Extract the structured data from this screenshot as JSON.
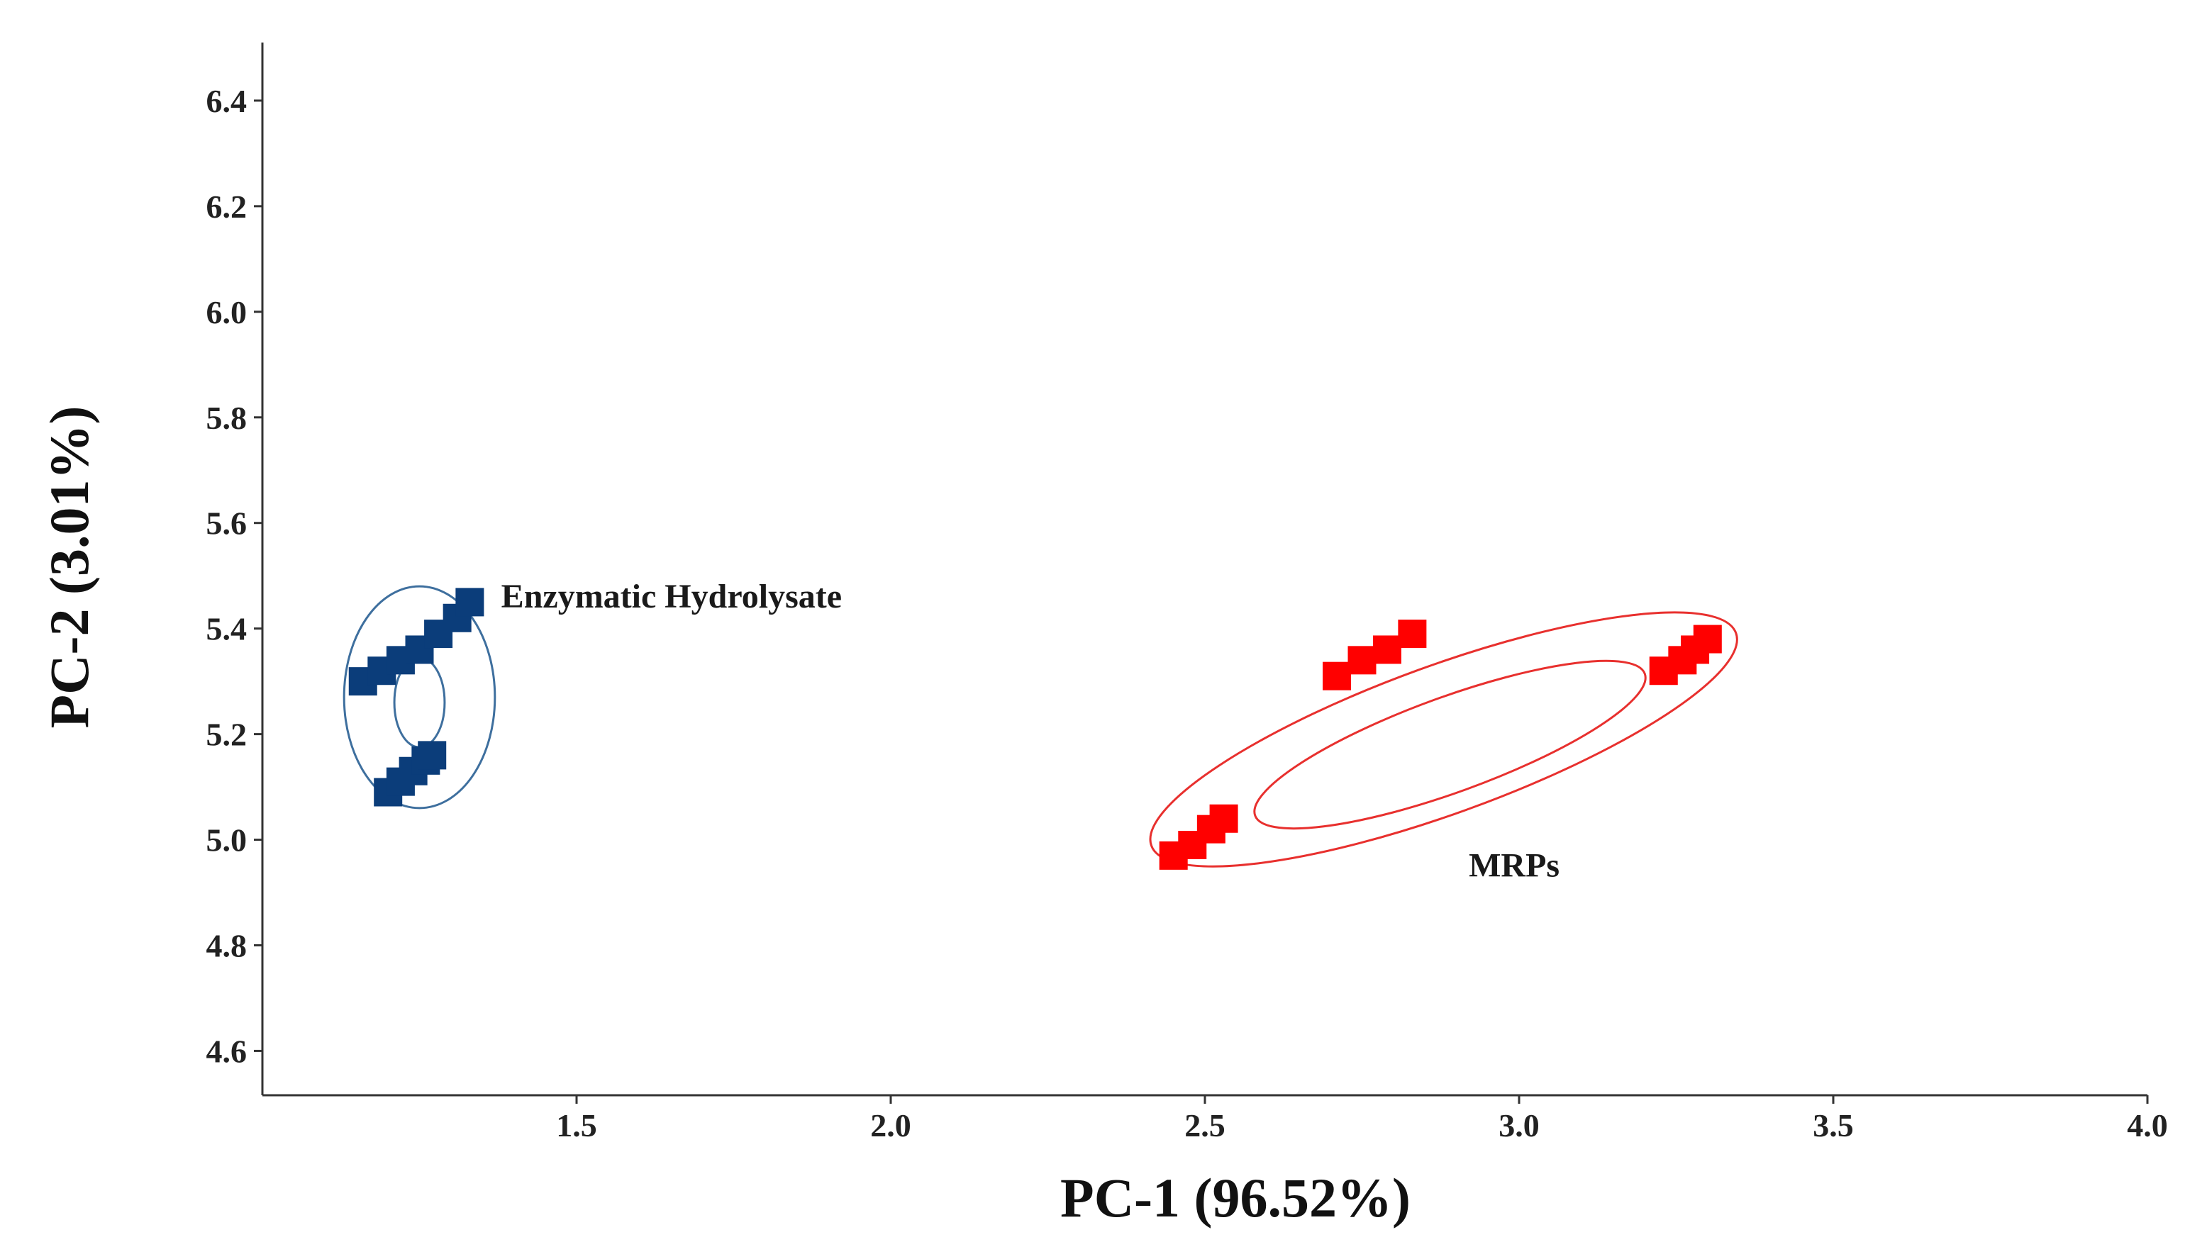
{
  "chart_data": {
    "type": "scatter",
    "xlabel": "PC-1 (96.52%)",
    "ylabel": "PC-2 (3.01%)",
    "xlim": [
      1.0,
      4.0
    ],
    "ylim": [
      4.5,
      6.5
    ],
    "xticks": [
      1.5,
      2.0,
      2.5,
      3.0,
      3.5,
      4.0
    ],
    "yticks": [
      4.6,
      4.8,
      5.0,
      5.2,
      5.4,
      5.6,
      5.8,
      6.0,
      6.2,
      6.4
    ],
    "xtick_labels": [
      "1.5",
      "2.0",
      "2.5",
      "3.0",
      "3.5",
      "4.0"
    ],
    "ytick_labels": [
      "4.6",
      "4.8",
      "5.0",
      "5.2",
      "5.4",
      "5.6",
      "5.8",
      "6.0",
      "6.2",
      "6.4"
    ],
    "grid": false,
    "series": [
      {
        "color": "#0b3d7a",
        "marker": "square",
        "points": [
          [
            1.16,
            5.3
          ],
          [
            1.19,
            5.32
          ],
          [
            1.22,
            5.34
          ],
          [
            1.25,
            5.36
          ],
          [
            1.28,
            5.39
          ],
          [
            1.31,
            5.42
          ],
          [
            1.33,
            5.45
          ],
          [
            1.2,
            5.09
          ],
          [
            1.22,
            5.11
          ],
          [
            1.24,
            5.13
          ],
          [
            1.26,
            5.15
          ],
          [
            1.27,
            5.16
          ]
        ]
      },
      {
        "color": "#ff0000",
        "marker": "square",
        "points": [
          [
            2.45,
            4.97
          ],
          [
            2.48,
            4.99
          ],
          [
            2.51,
            5.02
          ],
          [
            2.53,
            5.04
          ],
          [
            2.71,
            5.31
          ],
          [
            2.75,
            5.34
          ],
          [
            2.79,
            5.36
          ],
          [
            2.83,
            5.39
          ],
          [
            3.23,
            5.32
          ],
          [
            3.26,
            5.34
          ],
          [
            3.28,
            5.36
          ],
          [
            3.3,
            5.38
          ]
        ]
      }
    ],
    "ellipses": [
      {
        "group": 0,
        "color": "#3e6f9e",
        "cx": 1.25,
        "cy": 5.27,
        "rx": 0.12,
        "ry": 0.21,
        "angle_deg": 0
      },
      {
        "group": 0,
        "color": "#3e6f9e",
        "cx": 1.25,
        "cy": 5.26,
        "rx": 0.04,
        "ry": 0.085,
        "angle_deg": 0
      },
      {
        "group": 1,
        "color": "#e8302e",
        "cx": 2.88,
        "cy": 5.19,
        "rx": 0.495,
        "ry": 0.14,
        "angle_deg": -20
      },
      {
        "group": 1,
        "color": "#e8302e",
        "cx": 2.89,
        "cy": 5.18,
        "rx": 0.33,
        "ry": 0.09,
        "angle_deg": -20
      }
    ],
    "annotations": [
      {
        "text": "Enzymatic Hydrolysate",
        "x": 1.38,
        "y": 5.44
      },
      {
        "text": "MRPs",
        "x": 2.92,
        "y": 4.93
      }
    ]
  }
}
